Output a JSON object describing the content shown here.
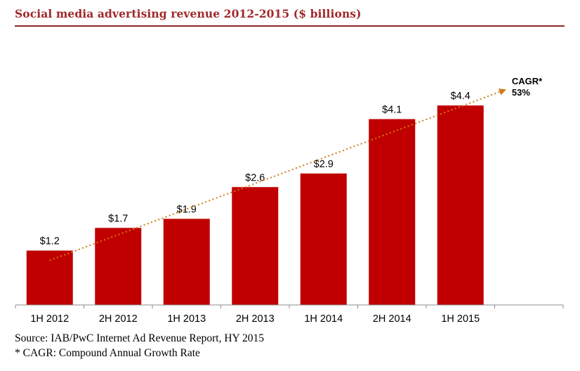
{
  "chart_data": {
    "type": "bar",
    "title": "Social media advertising revenue 2012-2015 ($ billions)",
    "xlabel": "",
    "ylabel": "",
    "ylim": [
      0,
      4.65
    ],
    "grid": false,
    "categories": [
      "1H 2012",
      "2H 2012",
      "1H 2013",
      "2H 2013",
      "1H 2014",
      "2H 2014",
      "1H 2015"
    ],
    "values": [
      1.2,
      1.7,
      1.9,
      2.6,
      2.9,
      4.1,
      4.4
    ],
    "value_labels": [
      "$1.2",
      "$1.7",
      "$1.9",
      "$2.6",
      "$2.9",
      "$4.1",
      "$4.4"
    ],
    "trend_annotation": {
      "label": "CAGR*",
      "value": "53%"
    },
    "colors": {
      "bar": "#c00000",
      "trend": "#d07a1a",
      "title": "#a0282b"
    }
  },
  "footer": {
    "source": "Source: IAB/PwC Internet Ad Revenue Report, HY 2015",
    "note": "* CAGR: Compound Annual Growth Rate"
  }
}
